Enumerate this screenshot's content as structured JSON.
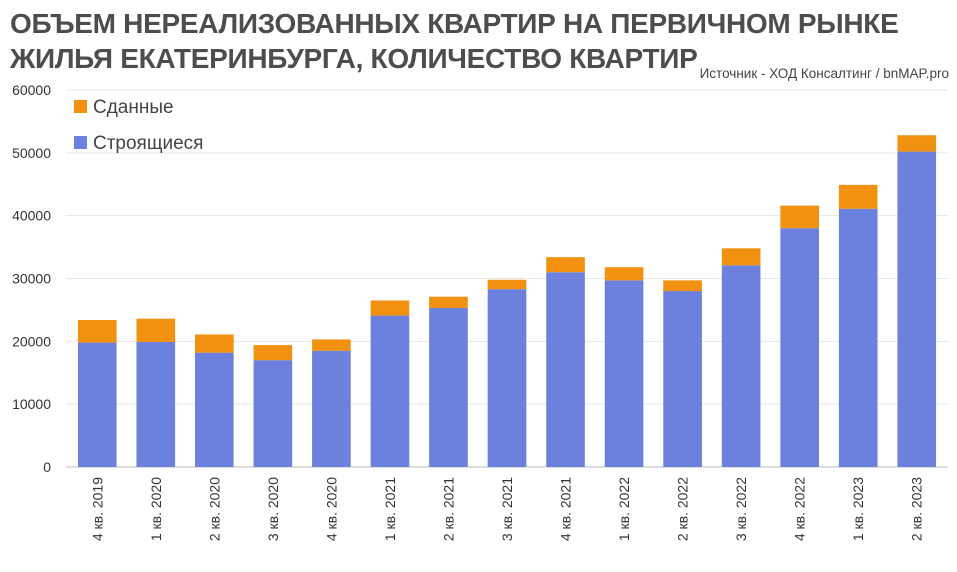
{
  "header": {
    "title": "ОБЪЕМ НЕРЕАЛИЗОВАННЫХ КВАРТИР НА ПЕРВИЧНОМ РЫНКЕ ЖИЛЬЯ ЕКАТЕРИНБУРГА, КОЛИЧЕСТВО КВАРТИР",
    "source": "Источник - ХОД Консалтинг / bnMAP.pro"
  },
  "colors": {
    "building": "#6c81dd",
    "completed": "#f2910f"
  },
  "chart_data": {
    "type": "bar",
    "stacked": true,
    "title": "ОБЪЕМ НЕРЕАЛИЗОВАННЫХ КВАРТИР НА ПЕРВИЧНОМ РЫНКЕ ЖИЛЬЯ ЕКАТЕРИНБУРГА, КОЛИЧЕСТВО КВАРТИР",
    "xlabel": "",
    "ylabel": "",
    "ylim": [
      0,
      60000
    ],
    "yticks": [
      "0",
      "10000",
      "20000",
      "30000",
      "40000",
      "50000",
      "60000"
    ],
    "grid": true,
    "legend_position": "top-left",
    "categories": [
      "4 кв. 2019",
      "1 кв. 2020",
      "2 кв. 2020",
      "3 кв. 2020",
      "4 кв. 2020",
      "1 кв. 2021",
      "2 кв. 2021",
      "3 кв. 2021",
      "4 кв. 2021",
      "1 кв. 2022",
      "2 кв. 2022",
      "3 кв. 2022",
      "4 кв. 2022",
      "1 кв. 2023",
      "2 кв. 2023"
    ],
    "series": [
      {
        "name": "Строящиеся",
        "color": "#6c81dd",
        "values": [
          19800,
          19900,
          18200,
          17000,
          18500,
          24100,
          25300,
          28300,
          31000,
          29700,
          28000,
          32100,
          38000,
          41100,
          50200
        ]
      },
      {
        "name": "Сданные",
        "color": "#f2910f",
        "values": [
          3600,
          3700,
          2900,
          2400,
          1800,
          2400,
          1800,
          1500,
          2400,
          2100,
          1700,
          2700,
          3600,
          3800,
          2600
        ]
      }
    ],
    "legend": [
      "Сданные",
      "Строящиеся"
    ]
  }
}
